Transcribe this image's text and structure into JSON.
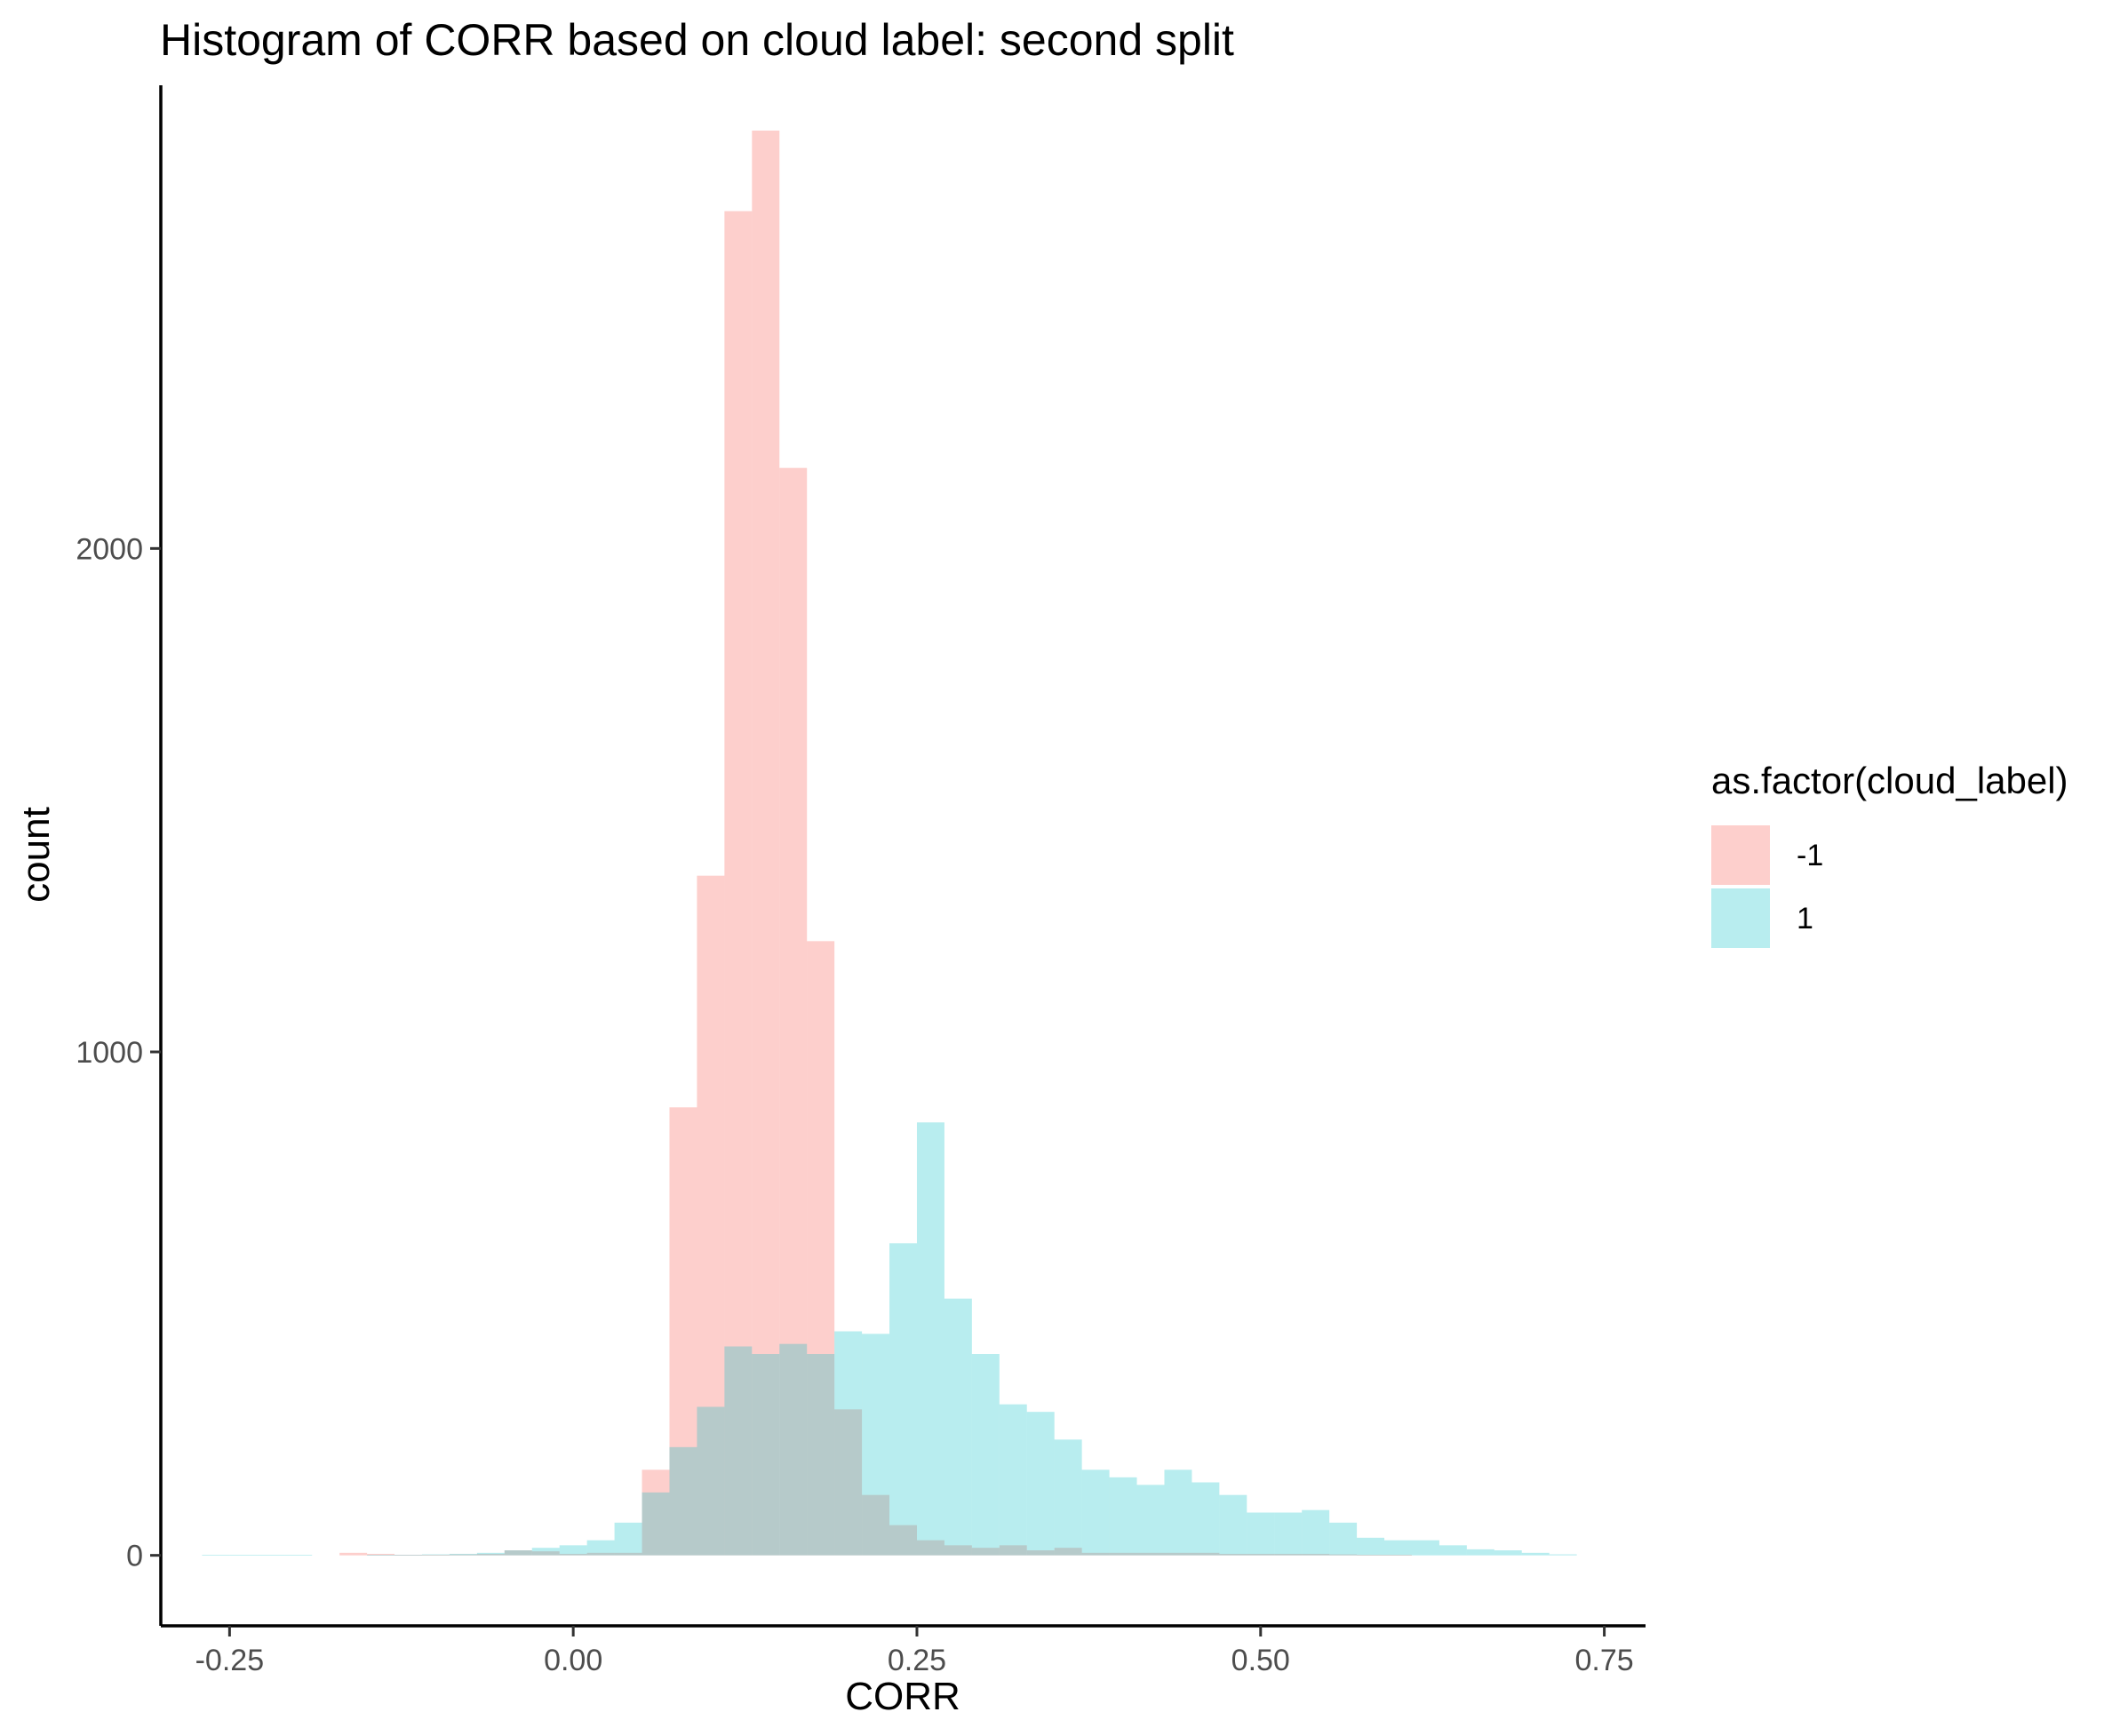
{
  "chart_data": {
    "type": "bar",
    "title": "Histogram of CORR based on cloud label: second split",
    "xlabel": "CORR",
    "ylabel": "count",
    "xlim": [
      -0.3,
      0.78
    ],
    "ylim": [
      -140,
      2920
    ],
    "x_ticks": [
      -0.25,
      0.0,
      0.25,
      0.5,
      0.75
    ],
    "x_tick_labels": [
      "-0.25",
      "0.00",
      "0.25",
      "0.50",
      "0.75"
    ],
    "y_ticks": [
      0,
      1000,
      2000
    ],
    "y_tick_labels": [
      "0",
      "1000",
      "2000"
    ],
    "grid": false,
    "bin_width": 0.02,
    "bin_starts": [
      -0.27,
      -0.25,
      -0.23,
      -0.21,
      -0.19,
      -0.17,
      -0.15,
      -0.13,
      -0.11,
      -0.09,
      -0.07,
      -0.05,
      -0.03,
      -0.01,
      0.01,
      0.03,
      0.05,
      0.07,
      0.09,
      0.11,
      0.13,
      0.15,
      0.17,
      0.19,
      0.21,
      0.23,
      0.25,
      0.27,
      0.29,
      0.31,
      0.33,
      0.35,
      0.37,
      0.39,
      0.41,
      0.43,
      0.45,
      0.47,
      0.49,
      0.51,
      0.53,
      0.55,
      0.57,
      0.59,
      0.61,
      0.63,
      0.65,
      0.67,
      0.69,
      0.71
    ],
    "legend": {
      "title": "as.factor(cloud_label)",
      "position": "right"
    },
    "series": [
      {
        "name": "-1",
        "color": "#F8766D",
        "opacity": 0.35,
        "values": [
          0,
          0,
          0,
          0,
          0,
          5,
          3,
          1,
          1,
          2,
          3,
          10,
          8,
          3,
          5,
          5,
          170,
          890,
          1350,
          2670,
          2830,
          2160,
          1220,
          290,
          120,
          60,
          30,
          20,
          15,
          20,
          10,
          15,
          5,
          5,
          5,
          5,
          5,
          3,
          3,
          3,
          3,
          2,
          1,
          1,
          0,
          0,
          0,
          0,
          0,
          0
        ]
      },
      {
        "name": "1",
        "color": "#00BFC4",
        "opacity": 0.28,
        "values": [
          1,
          1,
          1,
          1,
          0,
          0,
          1,
          1,
          2,
          3,
          5,
          10,
          15,
          20,
          30,
          65,
          125,
          215,
          295,
          415,
          400,
          420,
          400,
          445,
          440,
          620,
          860,
          510,
          400,
          300,
          285,
          230,
          170,
          155,
          140,
          170,
          145,
          120,
          85,
          85,
          90,
          65,
          35,
          30,
          30,
          20,
          12,
          10,
          5,
          2
        ]
      }
    ]
  }
}
